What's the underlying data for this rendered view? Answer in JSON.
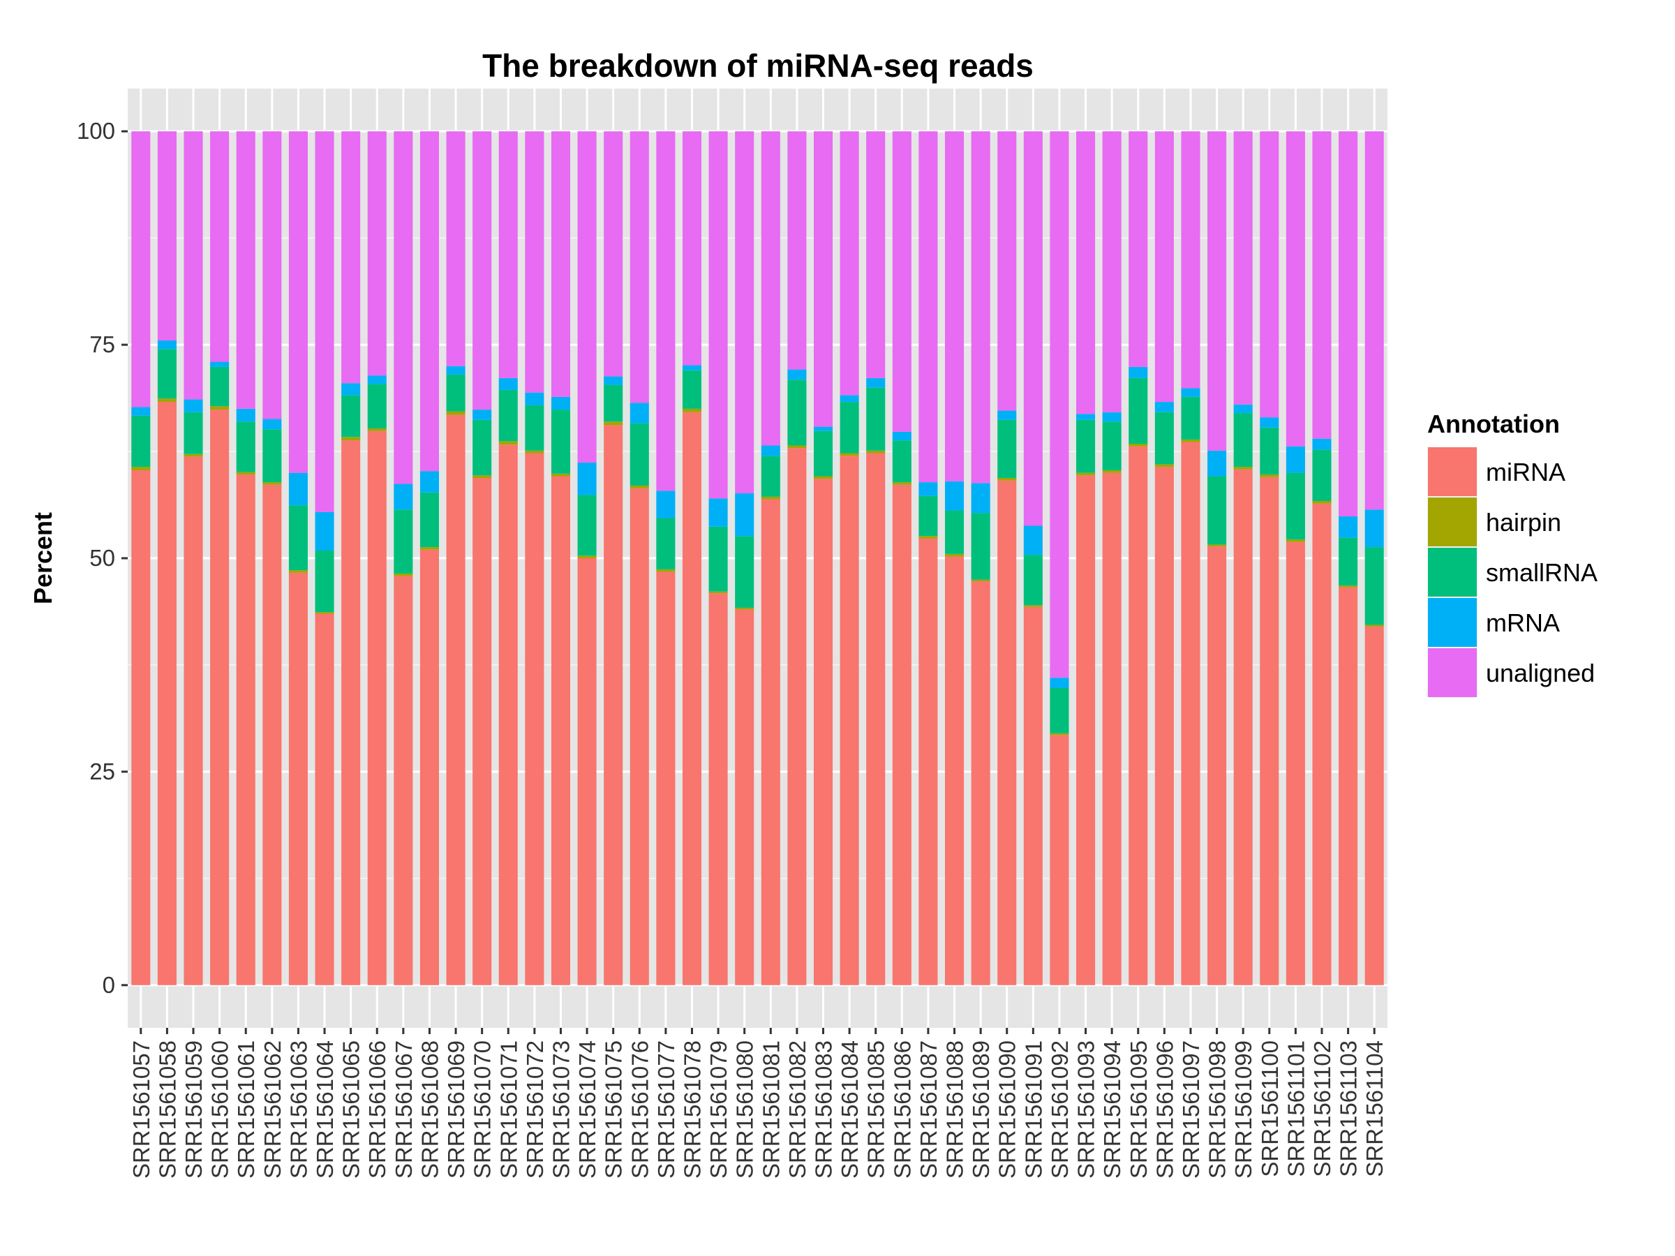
{
  "chart_data": {
    "type": "bar",
    "stacked": true,
    "title": "The breakdown of miRNA-seq reads",
    "xlabel": "",
    "ylabel": "Percent",
    "ylim": [
      -5,
      105
    ],
    "yticks": [
      0,
      25,
      50,
      75,
      100
    ],
    "grid": true,
    "legend": {
      "title": "Annotation",
      "position": "right"
    },
    "categories": [
      "SRR1561057",
      "SRR1561058",
      "SRR1561059",
      "SRR1561060",
      "SRR1561061",
      "SRR1561062",
      "SRR1561063",
      "SRR1561064",
      "SRR1561065",
      "SRR1561066",
      "SRR1561067",
      "SRR1561068",
      "SRR1561069",
      "SRR1561070",
      "SRR1561071",
      "SRR1561072",
      "SRR1561073",
      "SRR1561074",
      "SRR1561075",
      "SRR1561076",
      "SRR1561077",
      "SRR1561078",
      "SRR1561079",
      "SRR1561080",
      "SRR1561081",
      "SRR1561082",
      "SRR1561083",
      "SRR1561084",
      "SRR1561085",
      "SRR1561086",
      "SRR1561087",
      "SRR1561088",
      "SRR1561089",
      "SRR1561090",
      "SRR1561091",
      "SRR1561092",
      "SRR1561093",
      "SRR1561094",
      "SRR1561095",
      "SRR1561096",
      "SRR1561097",
      "SRR1561098",
      "SRR1561099",
      "SRR1561100",
      "SRR1561101",
      "SRR1561102",
      "SRR1561103",
      "SRR1561104"
    ],
    "series": [
      {
        "name": "miRNA",
        "color": "#F8766D",
        "values": [
          60.3,
          68.3,
          61.9,
          67.4,
          59.8,
          58.6,
          48.3,
          43.5,
          63.8,
          64.9,
          47.9,
          51.0,
          66.8,
          59.4,
          63.3,
          62.3,
          59.6,
          50.0,
          65.6,
          58.2,
          48.4,
          67.1,
          45.9,
          44.0,
          56.9,
          62.9,
          59.3,
          62.0,
          62.3,
          58.6,
          52.3,
          50.2,
          47.3,
          59.1,
          44.3,
          29.3,
          59.7,
          60.0,
          63.1,
          60.7,
          63.6,
          51.4,
          60.4,
          59.5,
          51.9,
          56.4,
          46.6,
          42.0
        ]
      },
      {
        "name": "hairpin",
        "color": "#A3A500",
        "values": [
          0.4,
          0.4,
          0.3,
          0.4,
          0.3,
          0.3,
          0.3,
          0.2,
          0.4,
          0.3,
          0.3,
          0.3,
          0.4,
          0.3,
          0.4,
          0.3,
          0.3,
          0.3,
          0.4,
          0.3,
          0.3,
          0.4,
          0.2,
          0.2,
          0.3,
          0.3,
          0.3,
          0.3,
          0.3,
          0.3,
          0.3,
          0.3,
          0.2,
          0.3,
          0.2,
          0.2,
          0.3,
          0.3,
          0.3,
          0.3,
          0.3,
          0.2,
          0.3,
          0.3,
          0.3,
          0.3,
          0.2,
          0.2
        ]
      },
      {
        "name": "smallRNA",
        "color": "#00BF7D",
        "values": [
          6.0,
          5.8,
          4.9,
          4.6,
          5.9,
          6.2,
          7.6,
          7.2,
          4.9,
          5.2,
          7.5,
          6.4,
          4.3,
          6.5,
          6.0,
          5.3,
          7.5,
          7.1,
          4.3,
          7.3,
          6.0,
          4.5,
          7.6,
          8.4,
          4.8,
          7.7,
          5.3,
          6.0,
          7.4,
          4.9,
          4.7,
          5.1,
          7.8,
          6.8,
          5.9,
          5.3,
          6.2,
          5.7,
          7.7,
          6.1,
          5.0,
          8.0,
          6.3,
          5.5,
          7.8,
          6.0,
          5.6,
          9.1
        ]
      },
      {
        "name": "mRNA",
        "color": "#00B0F6",
        "values": [
          1.0,
          1.0,
          1.5,
          0.6,
          1.5,
          1.2,
          3.8,
          4.5,
          1.4,
          1.0,
          3.0,
          2.5,
          1.0,
          1.2,
          1.4,
          1.5,
          1.5,
          3.8,
          1.0,
          2.4,
          3.2,
          0.6,
          3.3,
          5.0,
          1.2,
          1.2,
          0.5,
          0.8,
          1.1,
          1.0,
          1.6,
          3.4,
          3.5,
          1.1,
          3.4,
          1.2,
          0.7,
          1.1,
          1.3,
          1.2,
          1.0,
          3.0,
          1.0,
          1.2,
          3.1,
          1.3,
          2.5,
          4.4
        ]
      },
      {
        "name": "unaligned",
        "color": "#E76BF3",
        "values": [
          32.3,
          24.5,
          31.4,
          27.0,
          32.5,
          33.7,
          40.0,
          44.6,
          29.5,
          28.6,
          41.3,
          39.8,
          27.5,
          32.6,
          28.9,
          30.6,
          31.1,
          38.8,
          28.7,
          31.8,
          42.1,
          27.4,
          43.0,
          42.4,
          36.8,
          27.9,
          34.6,
          30.9,
          28.9,
          35.2,
          41.1,
          41.0,
          41.2,
          32.7,
          46.2,
          64.0,
          33.1,
          32.9,
          27.6,
          31.7,
          30.1,
          37.4,
          32.0,
          33.5,
          36.9,
          36.0,
          45.1,
          44.3
        ]
      }
    ]
  }
}
